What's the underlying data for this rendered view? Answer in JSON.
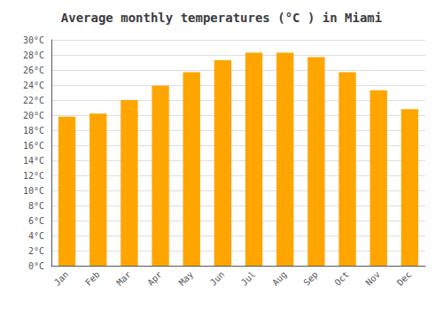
{
  "chart_data": {
    "type": "bar",
    "title": "Average monthly temperatures (°C ) in Miami",
    "categories": [
      "Jan",
      "Feb",
      "Mar",
      "Apr",
      "May",
      "Jun",
      "Jul",
      "Aug",
      "Sep",
      "Oct",
      "Nov",
      "Dec"
    ],
    "values": [
      19.8,
      20.2,
      22.0,
      23.9,
      25.7,
      27.3,
      28.3,
      28.3,
      27.7,
      25.7,
      23.3,
      20.8
    ],
    "color": "#FFA500",
    "ylim": [
      0,
      30
    ],
    "yticks": [
      {
        "value": 0,
        "label": "0°C"
      },
      {
        "value": 2,
        "label": "2°C"
      },
      {
        "value": 4,
        "label": "4°C"
      },
      {
        "value": 6,
        "label": "6°C"
      },
      {
        "value": 8,
        "label": "8°C"
      },
      {
        "value": 10,
        "label": "10°C"
      },
      {
        "value": 12,
        "label": "12°C"
      },
      {
        "value": 14,
        "label": "14°C"
      },
      {
        "value": 16,
        "label": "16°C"
      },
      {
        "value": 18,
        "label": "18°C"
      },
      {
        "value": 20,
        "label": "20°C"
      },
      {
        "value": 22,
        "label": "22°C"
      },
      {
        "value": 24,
        "label": "24°C"
      },
      {
        "value": 26,
        "label": "26°C"
      },
      {
        "value": 28,
        "label": "28°C"
      },
      {
        "value": 30,
        "label": "30°C"
      }
    ],
    "grid": true
  }
}
